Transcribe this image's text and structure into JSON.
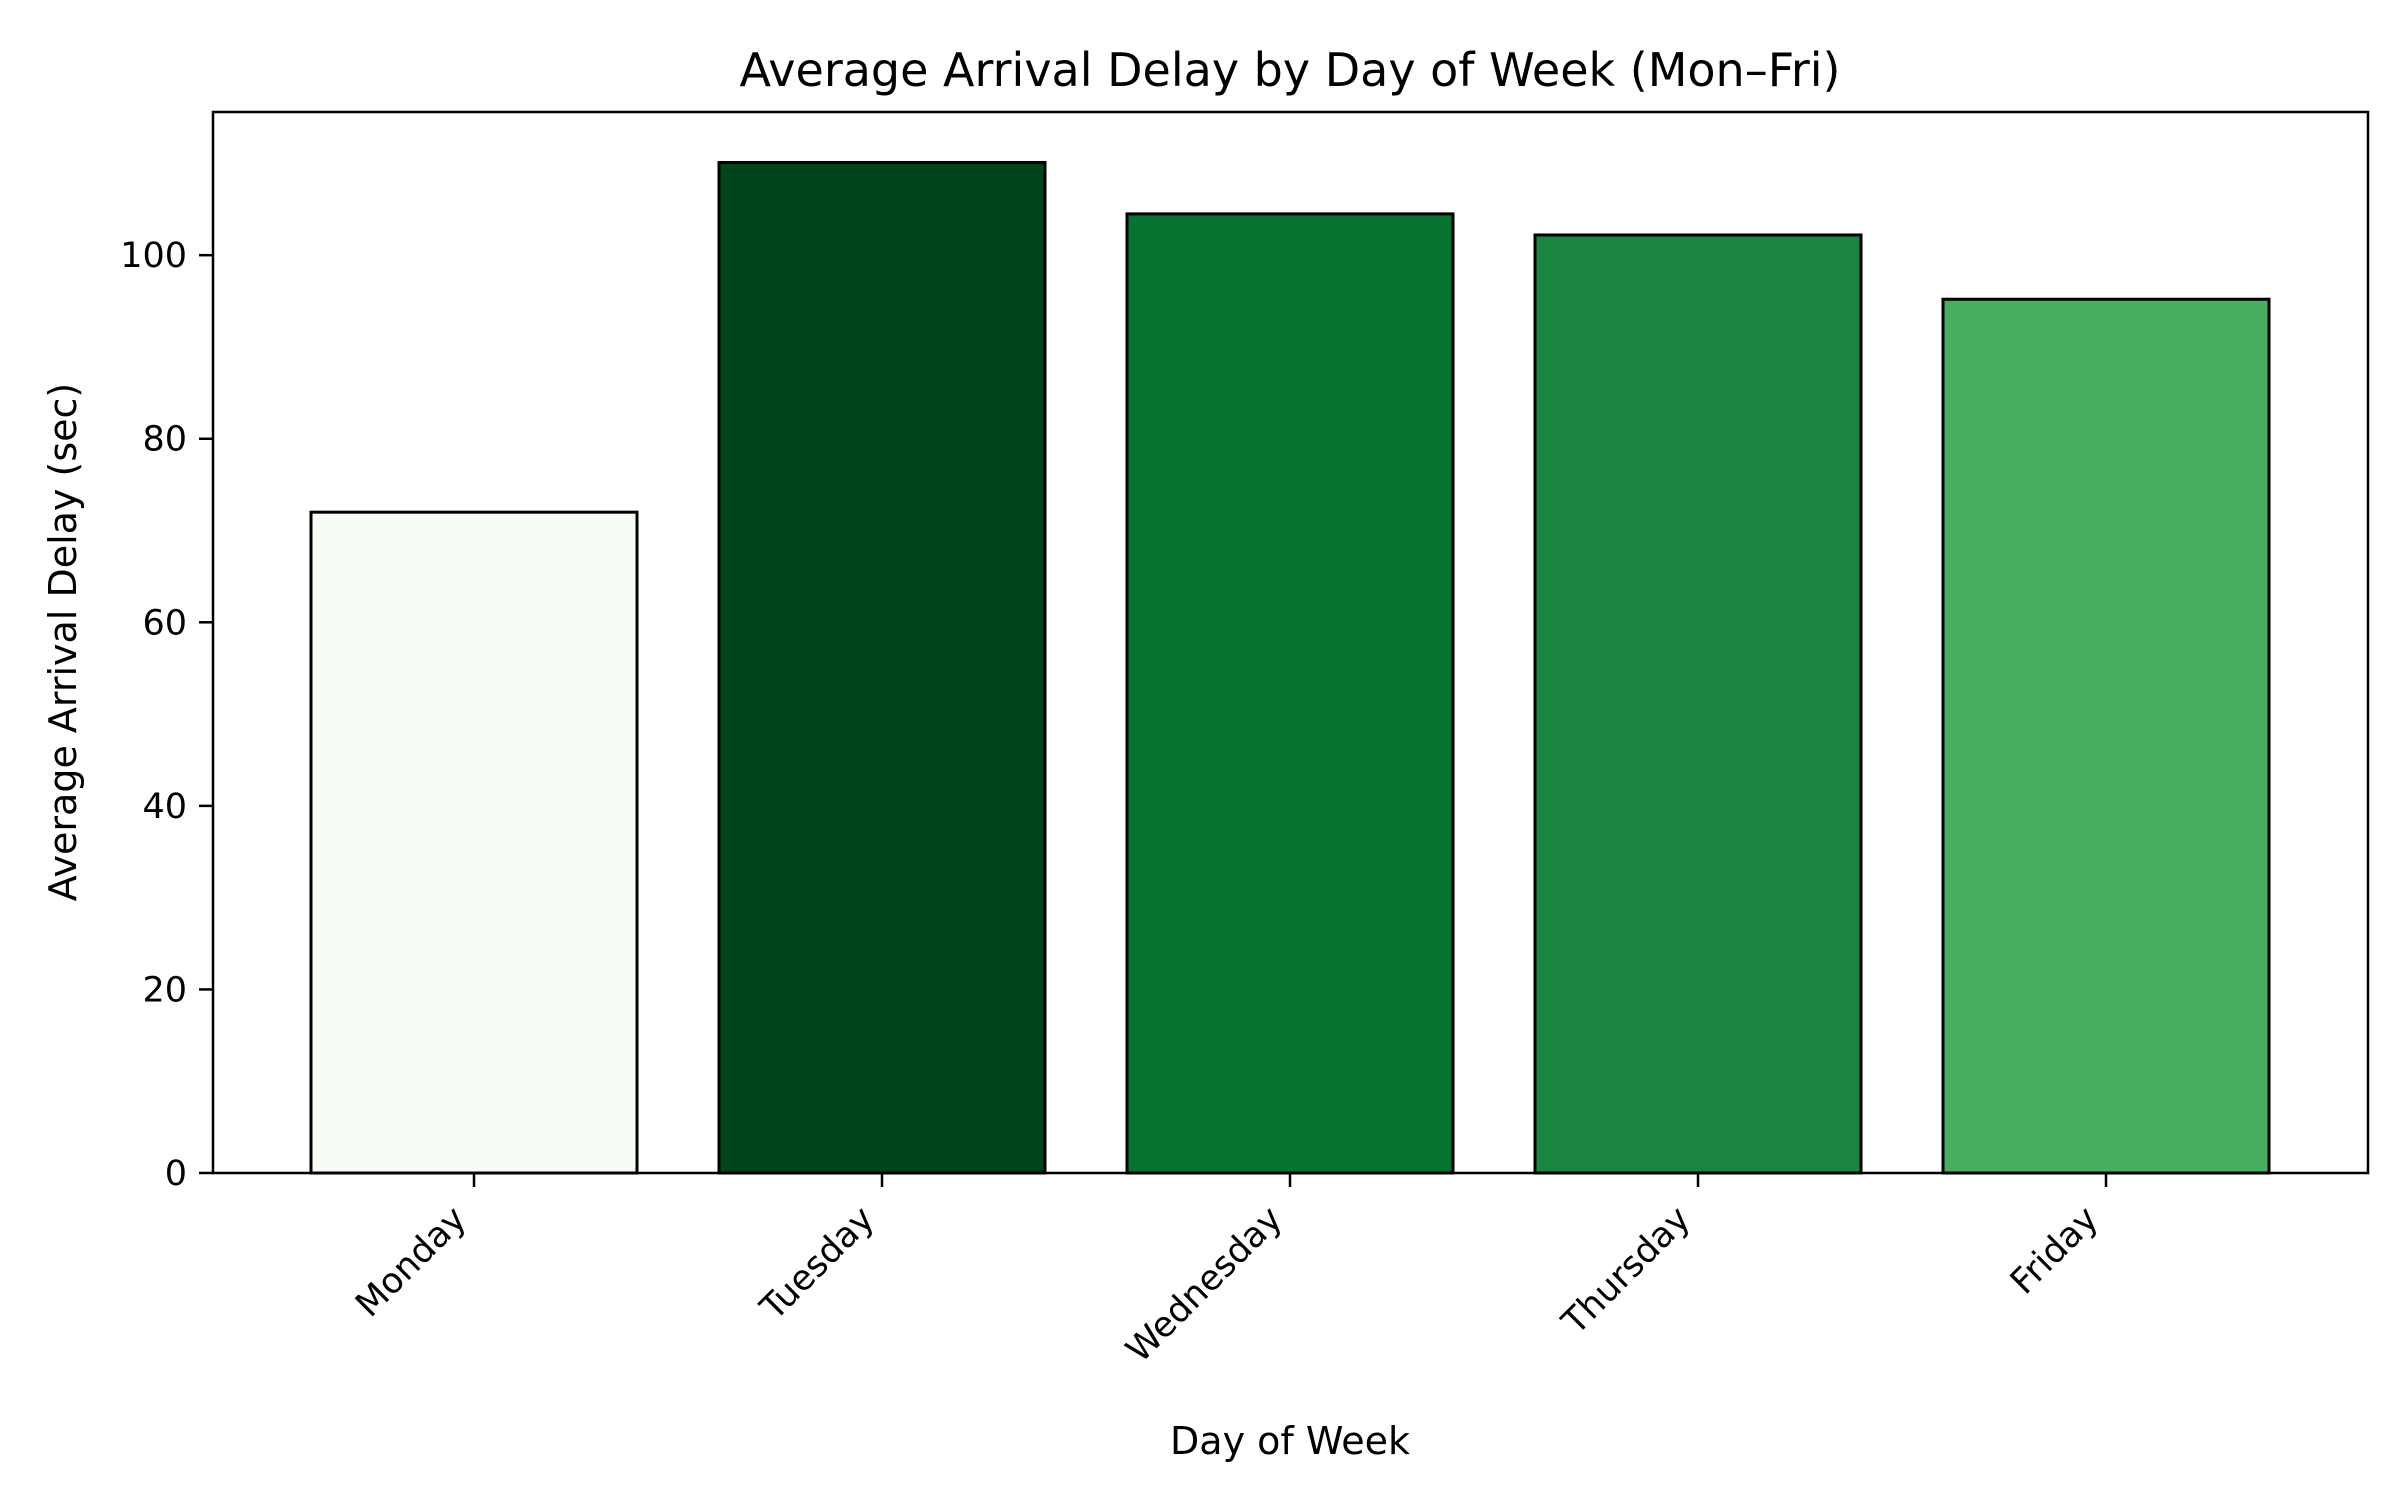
{
  "chart_data": {
    "type": "bar",
    "title": "Average Arrival Delay by Day of Week (Mon–Fri)",
    "xlabel": "Day of Week",
    "ylabel": "Average Arrival Delay (sec)",
    "categories": [
      "Monday",
      "Tuesday",
      "Wednesday",
      "Thursday",
      "Friday"
    ],
    "values": [
      72.0,
      110.1,
      104.5,
      102.2,
      95.2
    ],
    "colors": [
      "#f7fcf5",
      "#00441b",
      "#077331",
      "#198540",
      "#48ae60"
    ],
    "edge_color": "#000000",
    "ylim": [
      0,
      115.6
    ],
    "yticks": [
      0,
      20,
      40,
      60,
      80,
      100
    ],
    "grid": false,
    "legend": "none"
  }
}
